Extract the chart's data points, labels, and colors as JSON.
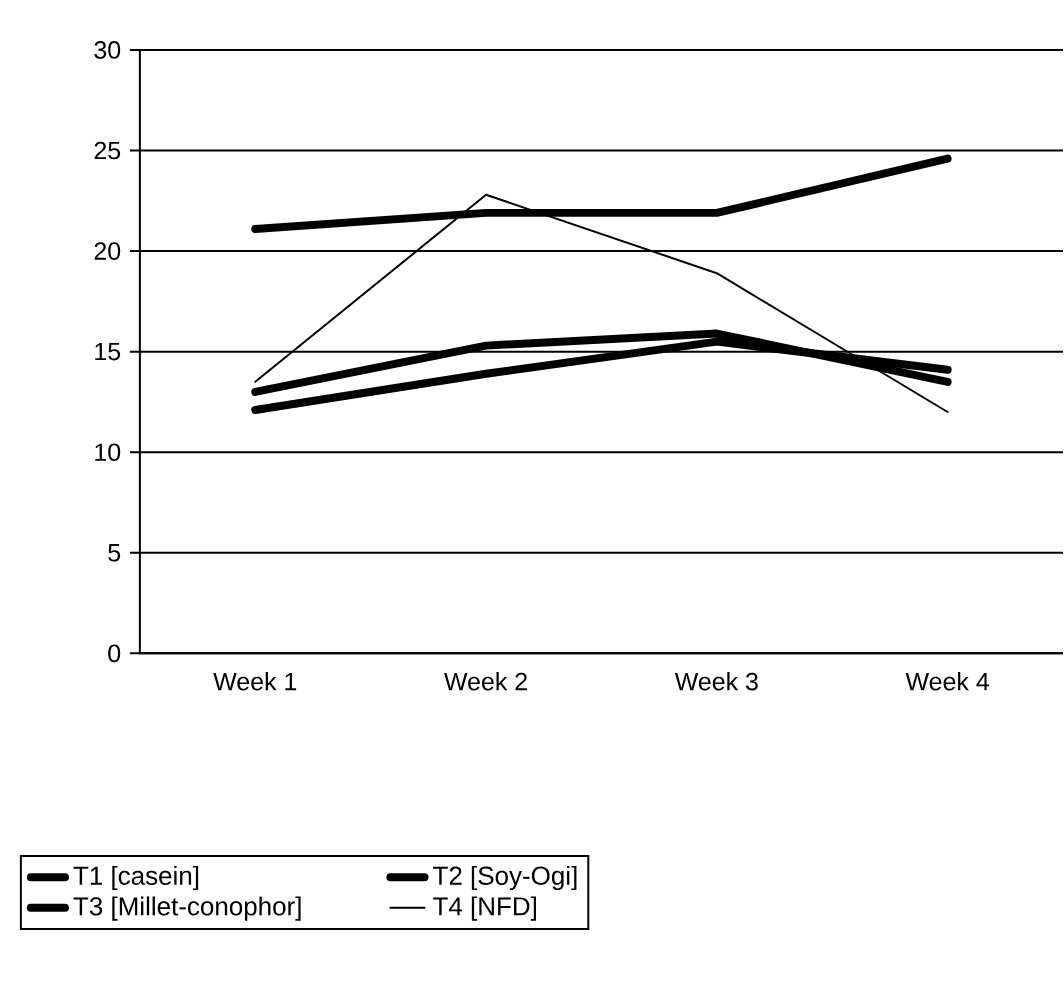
{
  "chart_data": {
    "type": "line",
    "categories": [
      "Week 1",
      "Week 2",
      "Week 3",
      "Week 4"
    ],
    "series": [
      {
        "name": "T1 [casein]",
        "color": "#000000",
        "values": [
          21.1,
          21.9,
          21.9,
          24.6
        ]
      },
      {
        "name": "T2 [Soy-Ogi]",
        "color": "#000000",
        "values": [
          13.0,
          15.3,
          15.9,
          13.5
        ]
      },
      {
        "name": "T3 [Millet-conophor]",
        "color": "#000000",
        "values": [
          12.1,
          13.9,
          15.5,
          14.1
        ]
      },
      {
        "name": "T4 [NFD]",
        "color": "#000000",
        "values": [
          13.5,
          22.8,
          18.9,
          12.0
        ]
      }
    ],
    "ylim": [
      0,
      30
    ],
    "yticks": [
      0,
      5,
      10,
      15,
      20,
      25,
      30
    ],
    "grid": "y",
    "legend": "bottom",
    "marker": "none",
    "line_style": "solid"
  }
}
